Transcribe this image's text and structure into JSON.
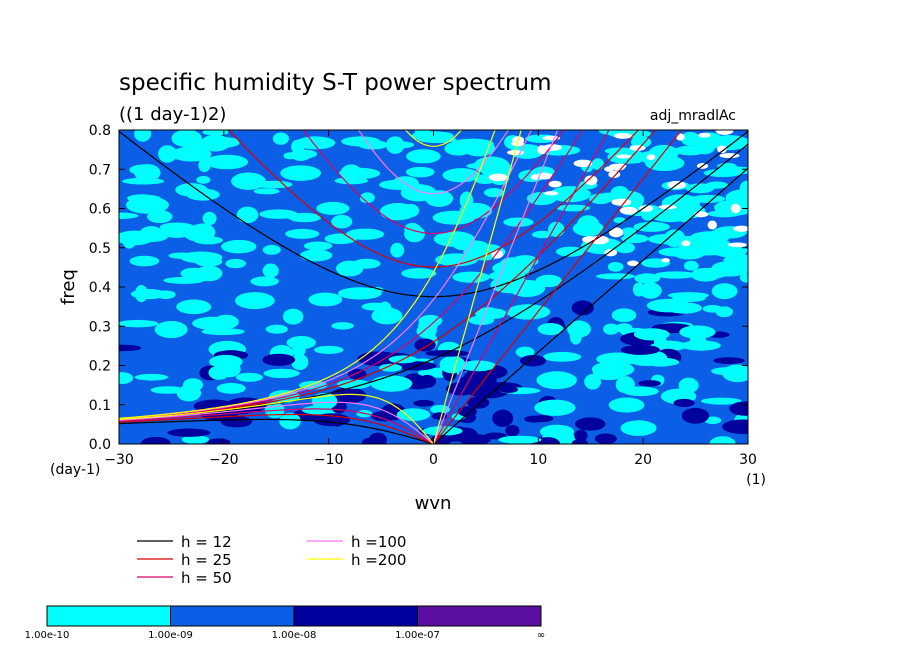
{
  "chart_data": {
    "type": "heatmap",
    "title": "specific humidity S-T power spectrum",
    "subtitle": "((1 day-1)2)",
    "experiment_label": "adj_mradlAc",
    "xlabel": "wvn",
    "ylabel": "freq",
    "x_unit": "(1)",
    "y_unit": "(day-1)",
    "xlim": [
      -30,
      30
    ],
    "ylim": [
      0,
      0.8
    ],
    "x_ticks": [
      -30,
      -20,
      -10,
      0,
      10,
      20,
      30
    ],
    "y_ticks": [
      0.0,
      0.1,
      0.2,
      0.3,
      0.4,
      0.5,
      0.6,
      0.7,
      0.8
    ],
    "x_tick_labels": [
      "−30",
      "−20",
      "−10",
      "0",
      "10",
      "20",
      "30"
    ],
    "y_tick_labels": [
      "0.0",
      "0.1",
      "0.2",
      "0.3",
      "0.4",
      "0.5",
      "0.6",
      "0.7",
      "0.8"
    ],
    "colorbar": {
      "labels": [
        "1.00e-10",
        "1.00e-09",
        "1.00e-08",
        "1.00e-07",
        "∞"
      ],
      "colors": [
        "#00ffff",
        "#0a5fe6",
        "#00009c",
        "#5a0fa0"
      ]
    },
    "dispersion_curves": [
      {
        "name": "h = 12",
        "color": "#000000",
        "equivalent_depth": 12
      },
      {
        "name": "h = 25",
        "color": "#dc0000",
        "equivalent_depth": 25
      },
      {
        "name": "h = 50",
        "color": "#dc0064",
        "equivalent_depth": 50
      },
      {
        "name": "h =100",
        "color": "#ff78ff",
        "equivalent_depth": 100
      },
      {
        "name": "h =200",
        "color": "#ffff00",
        "equivalent_depth": 200
      }
    ]
  }
}
